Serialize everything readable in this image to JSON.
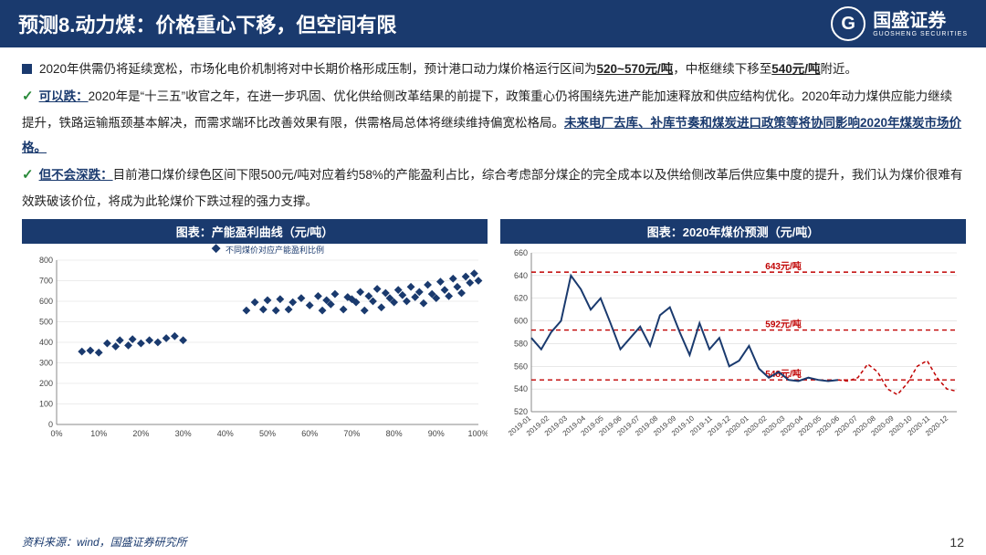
{
  "header": {
    "title": "预测8.动力煤：价格重心下移，但空间有限",
    "logo_main": "国盛证券",
    "logo_sub": "GUOSHENG SECURITIES",
    "logo_glyph": "G"
  },
  "body": {
    "p1_lead": "2020年供需仍将延续宽松，市场化电价机制将对中长期价格形成压制，预计港口动力煤价格运行区间为",
    "p1_range": "520~570元/吨",
    "p1_mid": "，中枢继续下移至",
    "p1_center": "540元/吨",
    "p1_tail": "附近。",
    "p2_label": "可以跌：",
    "p2_a": "2020年是“十三五”收官之年，在进一步巩固、优化供给侧改革结果的前提下，政策重心仍将围绕先进产能加速释放和供应结构优化。2020年动力煤供应能力继续提升，铁路运输瓶颈基本解决，而需求端环比改善效果有限，供需格局总体将继续维持偏宽松格局。",
    "p2_emph": "未来电厂去库、补库节奏和煤炭进口政策等将协同影响2020年煤炭市场价格。",
    "p3_label": "但不会深跌：",
    "p3_a": "目前港口煤价绿色区间下限500元/吨对应着约58%的产能盈利占比，综合考虑部分煤企的完全成本以及供给侧改革后供应集中度的提升，我们认为煤价很难有效跌破该价位，将成为此轮煤价下跌过程的强力支撑。"
  },
  "chart_left": {
    "title": "图表：产能盈利曲线（元/吨）",
    "type": "scatter",
    "legend": "不同煤价对应产能盈利比例",
    "xlabel_suffix": "%",
    "xlim": [
      0,
      100
    ],
    "xtick_step": 10,
    "ylim": [
      0,
      800
    ],
    "ytick_step": 100,
    "marker_color": "#1a3a6e",
    "marker_size": 5,
    "grid_color": "#d9d9d9",
    "axis_fontsize": 9,
    "points": [
      [
        6,
        355
      ],
      [
        8,
        360
      ],
      [
        10,
        350
      ],
      [
        12,
        395
      ],
      [
        14,
        380
      ],
      [
        15,
        410
      ],
      [
        17,
        385
      ],
      [
        18,
        415
      ],
      [
        20,
        395
      ],
      [
        22,
        410
      ],
      [
        24,
        400
      ],
      [
        26,
        420
      ],
      [
        28,
        430
      ],
      [
        30,
        410
      ],
      [
        45,
        555
      ],
      [
        47,
        595
      ],
      [
        49,
        560
      ],
      [
        50,
        605
      ],
      [
        52,
        555
      ],
      [
        53,
        610
      ],
      [
        55,
        560
      ],
      [
        56,
        595
      ],
      [
        58,
        615
      ],
      [
        60,
        580
      ],
      [
        62,
        625
      ],
      [
        63,
        555
      ],
      [
        64,
        605
      ],
      [
        65,
        585
      ],
      [
        66,
        635
      ],
      [
        68,
        560
      ],
      [
        69,
        620
      ],
      [
        70,
        610
      ],
      [
        71,
        595
      ],
      [
        72,
        645
      ],
      [
        73,
        555
      ],
      [
        74,
        625
      ],
      [
        75,
        600
      ],
      [
        76,
        660
      ],
      [
        77,
        570
      ],
      [
        78,
        640
      ],
      [
        79,
        615
      ],
      [
        80,
        595
      ],
      [
        81,
        655
      ],
      [
        82,
        630
      ],
      [
        83,
        600
      ],
      [
        84,
        670
      ],
      [
        85,
        620
      ],
      [
        86,
        645
      ],
      [
        87,
        590
      ],
      [
        88,
        680
      ],
      [
        89,
        635
      ],
      [
        90,
        615
      ],
      [
        91,
        695
      ],
      [
        92,
        655
      ],
      [
        93,
        625
      ],
      [
        94,
        710
      ],
      [
        95,
        670
      ],
      [
        96,
        640
      ],
      [
        97,
        720
      ],
      [
        98,
        690
      ],
      [
        99,
        735
      ],
      [
        100,
        700
      ]
    ]
  },
  "chart_right": {
    "title": "图表：2020年煤价预测（元/吨）",
    "type": "line",
    "ylim": [
      520,
      660
    ],
    "ytick_step": 20,
    "x_labels": [
      "2019-01",
      "2019-02",
      "2019-03",
      "2019-04",
      "2019-05",
      "2019-06",
      "2019-07",
      "2019-08",
      "2019-09",
      "2019-10",
      "2019-11",
      "2019-12",
      "2020-01",
      "2020-02",
      "2020-03",
      "2020-04",
      "2020-05",
      "2020-06",
      "2020-07",
      "2020-08",
      "2020-09",
      "2020-10",
      "2020-11",
      "2020-12"
    ],
    "hist_color": "#1a3a6e",
    "hist_width": 2,
    "fcst_color": "#c00000",
    "fcst_dash": "4,3",
    "fcst_width": 1.5,
    "ref_lines": [
      {
        "y": 643,
        "label": "643元/吨",
        "color": "#c00000"
      },
      {
        "y": 592,
        "label": "592元/吨",
        "color": "#c00000"
      },
      {
        "y": 548,
        "label": "548元/吨",
        "color": "#c00000"
      }
    ],
    "hist_values": [
      585,
      575,
      590,
      600,
      640,
      628,
      610,
      620,
      598,
      575,
      585,
      595,
      578,
      605,
      612,
      590,
      570,
      598,
      575,
      585,
      560,
      565,
      578,
      558,
      550,
      555,
      548,
      547,
      550,
      548,
      547,
      548
    ],
    "fcst_values": [
      548,
      547,
      550,
      562,
      555,
      540,
      535,
      545,
      560,
      565,
      550,
      540,
      538
    ]
  },
  "footer": {
    "source": "资料来源：wind，国盛证券研究所",
    "page": "12"
  }
}
